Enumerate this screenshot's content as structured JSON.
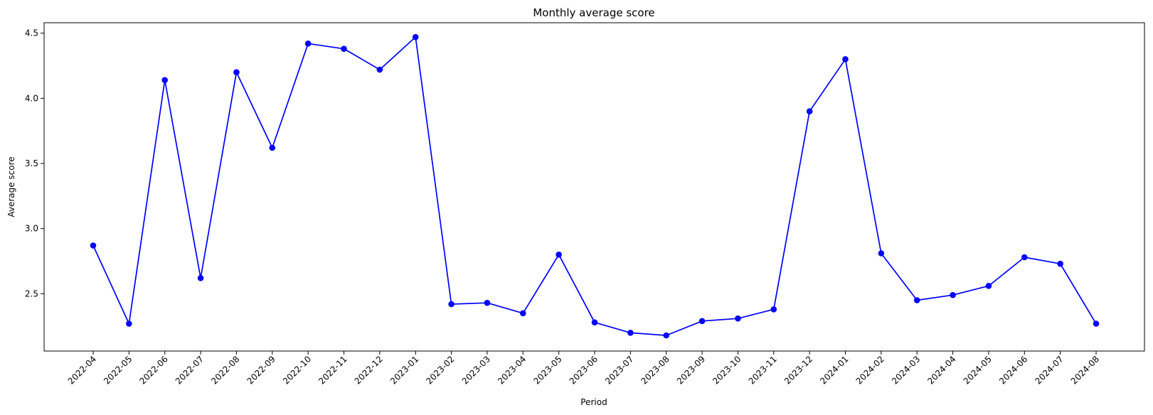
{
  "chart_data": {
    "type": "line",
    "title": "Monthly average score",
    "xlabel": "Period",
    "ylabel": "Average score",
    "categories": [
      "2022-04",
      "2022-05",
      "2022-06",
      "2022-07",
      "2022-08",
      "2022-09",
      "2022-10",
      "2022-11",
      "2022-12",
      "2023-01",
      "2023-02",
      "2023-03",
      "2023-04",
      "2023-05",
      "2023-06",
      "2023-07",
      "2023-08",
      "2023-09",
      "2023-10",
      "2023-11",
      "2023-12",
      "2024-01",
      "2024-02",
      "2024-03",
      "2024-04",
      "2024-05",
      "2024-06",
      "2024-07",
      "2024-08"
    ],
    "series": [
      {
        "values": [
          2.87,
          2.27,
          4.14,
          2.62,
          4.2,
          3.62,
          4.42,
          4.38,
          4.22,
          4.47,
          2.42,
          2.43,
          2.35,
          2.8,
          2.28,
          2.2,
          2.18,
          2.29,
          2.31,
          2.38,
          3.9,
          4.3,
          2.81,
          2.45,
          2.49,
          2.56,
          2.78,
          2.73,
          2.27
        ],
        "color": "#0000ff",
        "marker": "circle"
      }
    ],
    "yticks": [
      2.5,
      3.0,
      3.5,
      4.0,
      4.5
    ],
    "ytick_labels": [
      "2.5",
      "3.0",
      "3.5",
      "4.0",
      "4.5"
    ],
    "ylim": [
      2.06,
      4.58
    ],
    "grid": false,
    "legend": "none"
  }
}
